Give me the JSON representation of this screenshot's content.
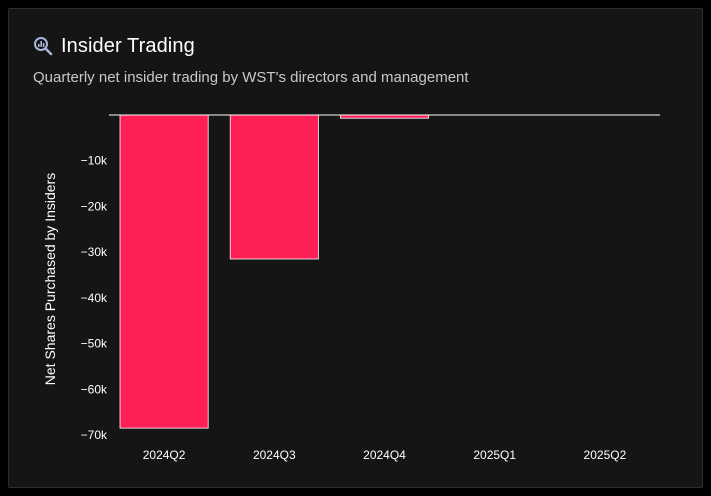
{
  "header": {
    "title": "Insider Trading",
    "subtitle": "Quarterly net insider trading by WST's directors and management",
    "icon": "magnifier-chart-icon"
  },
  "colors": {
    "background": "#151515",
    "bar": "#ff1f57",
    "text": "#ffffff",
    "zero_line": "#ffffff"
  },
  "chart_data": {
    "type": "bar",
    "categories": [
      "2024Q2",
      "2024Q3",
      "2024Q4",
      "2025Q1",
      "2025Q2"
    ],
    "values": [
      -68500,
      -31500,
      -700,
      0,
      0
    ],
    "ylabel": "Net Shares Purchased by Insiders",
    "xlabel": "",
    "ylim": [
      -70000,
      0
    ],
    "yticks": [
      -10000,
      -20000,
      -30000,
      -40000,
      -50000,
      -60000,
      -70000
    ],
    "ytick_labels": [
      "−10k",
      "−20k",
      "−30k",
      "−40k",
      "−50k",
      "−60k",
      "−70k"
    ],
    "grid": false,
    "legend": "none"
  }
}
